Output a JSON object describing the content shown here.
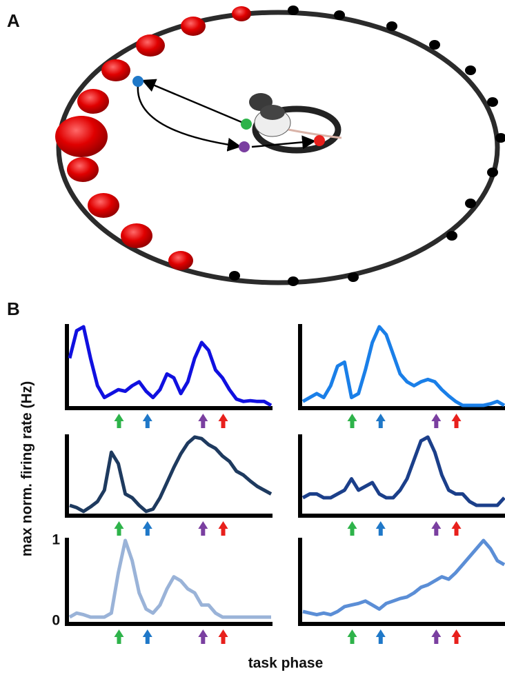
{
  "panel_labels": [
    "A",
    "B"
  ],
  "y_label": "max norm. firing rate (Hz)",
  "x_label": "task phase",
  "events": [
    {
      "color": "#2eb34a",
      "x": 7.1
    },
    {
      "color": "#1f78c8",
      "x": 11.2
    },
    {
      "color": "#7a3fa0",
      "x": 19.2
    },
    {
      "color": "#e8201c",
      "x": 22.1
    }
  ],
  "chart_data": [
    {
      "type": "line",
      "color": "#1010e0",
      "ylim": [
        0,
        1
      ],
      "values": [
        0.6,
        0.95,
        1.0,
        0.6,
        0.25,
        0.1,
        0.15,
        0.2,
        0.18,
        0.25,
        0.3,
        0.18,
        0.1,
        0.2,
        0.4,
        0.35,
        0.15,
        0.3,
        0.6,
        0.8,
        0.7,
        0.45,
        0.35,
        0.2,
        0.08,
        0.05,
        0.06,
        0.05,
        0.05,
        0.0
      ]
    },
    {
      "type": "line",
      "color": "#1a7fe8",
      "ylim": [
        0,
        1
      ],
      "values": [
        0.05,
        0.1,
        0.15,
        0.1,
        0.25,
        0.5,
        0.55,
        0.1,
        0.15,
        0.45,
        0.8,
        1.0,
        0.9,
        0.65,
        0.4,
        0.3,
        0.25,
        0.3,
        0.33,
        0.3,
        0.2,
        0.12,
        0.05,
        0.0,
        0.0,
        0.0,
        0.0,
        0.02,
        0.05,
        0.0
      ]
    },
    {
      "type": "line",
      "color": "#1e3a5f",
      "ylim": [
        0,
        1
      ],
      "values": [
        0.1,
        0.07,
        0.02,
        0.08,
        0.15,
        0.3,
        0.8,
        0.65,
        0.25,
        0.2,
        0.1,
        0.02,
        0.05,
        0.2,
        0.4,
        0.6,
        0.78,
        0.92,
        1.0,
        0.98,
        0.9,
        0.85,
        0.75,
        0.68,
        0.55,
        0.5,
        0.42,
        0.35,
        0.3,
        0.25
      ]
    },
    {
      "type": "line",
      "color": "#1b3f8a",
      "ylim": [
        0,
        1
      ],
      "values": [
        0.2,
        0.25,
        0.25,
        0.2,
        0.2,
        0.25,
        0.3,
        0.45,
        0.3,
        0.35,
        0.4,
        0.25,
        0.2,
        0.2,
        0.3,
        0.45,
        0.7,
        0.95,
        1.0,
        0.8,
        0.5,
        0.3,
        0.25,
        0.25,
        0.15,
        0.1,
        0.1,
        0.1,
        0.1,
        0.2
      ]
    },
    {
      "type": "line",
      "color": "#9ab3d8",
      "ylim": [
        0,
        1
      ],
      "yticks": [
        0,
        1
      ],
      "values": [
        0.05,
        0.1,
        0.08,
        0.05,
        0.05,
        0.05,
        0.1,
        0.6,
        1.0,
        0.75,
        0.35,
        0.15,
        0.1,
        0.2,
        0.4,
        0.55,
        0.5,
        0.4,
        0.35,
        0.2,
        0.2,
        0.1,
        0.05,
        0.05,
        0.05,
        0.05,
        0.05,
        0.05,
        0.05,
        0.05
      ]
    },
    {
      "type": "line",
      "color": "#5b8ed6",
      "ylim": [
        0,
        1
      ],
      "values": [
        0.12,
        0.1,
        0.08,
        0.1,
        0.08,
        0.12,
        0.18,
        0.2,
        0.22,
        0.25,
        0.2,
        0.15,
        0.22,
        0.25,
        0.28,
        0.3,
        0.35,
        0.42,
        0.45,
        0.5,
        0.55,
        0.52,
        0.6,
        0.7,
        0.8,
        0.9,
        1.0,
        0.9,
        0.75,
        0.7
      ]
    }
  ]
}
